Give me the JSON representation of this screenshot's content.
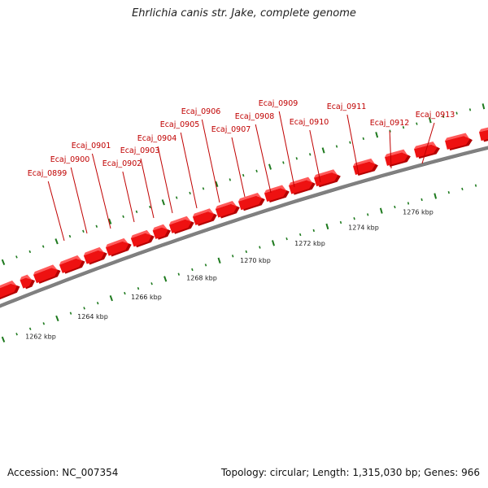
{
  "title": "Ehrlichia canis str. Jake, complete genome",
  "footer": {
    "accession": "Accession: NC_007354",
    "summary": "Topology: circular; Length: 1,315,030 bp; Genes: 966"
  },
  "colors": {
    "gene": "#ee1111",
    "gene_top": "#ff5a5a",
    "gene_shadow": "#b30000",
    "backbone": "#808080",
    "ticks": "#1e7a1e",
    "label": "#c00000"
  },
  "scale": {
    "labels": [
      "1262 kbp",
      "1264 kbp",
      "1266 kbp",
      "1268 kbp",
      "1270 kbp",
      "1272 kbp",
      "1274 kbp",
      "1276 kbp"
    ]
  },
  "genes": [
    {
      "locus": "Ecaj_0899"
    },
    {
      "locus": "Ecaj_0900"
    },
    {
      "locus": "Ecaj_0901"
    },
    {
      "locus": "Ecaj_0902"
    },
    {
      "locus": "Ecaj_0903"
    },
    {
      "locus": "Ecaj_0904"
    },
    {
      "locus": "Ecaj_0905"
    },
    {
      "locus": "Ecaj_0906"
    },
    {
      "locus": "Ecaj_0907"
    },
    {
      "locus": "Ecaj_0908"
    },
    {
      "locus": "Ecaj_0909"
    },
    {
      "locus": "Ecaj_0910"
    },
    {
      "locus": "Ecaj_0911"
    },
    {
      "locus": "Ecaj_0912"
    },
    {
      "locus": "Ecaj_0913"
    }
  ]
}
